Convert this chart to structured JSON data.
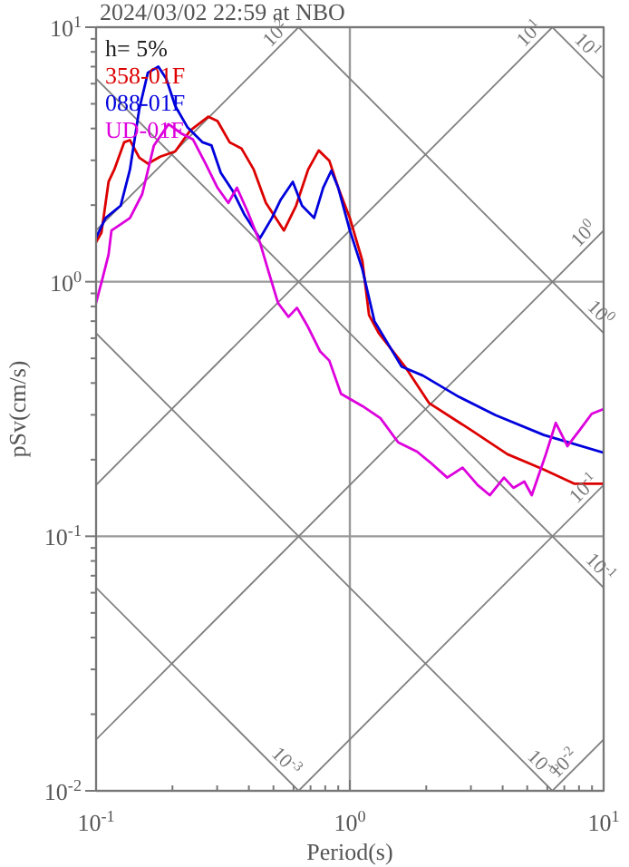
{
  "chart_data": {
    "type": "line",
    "title": "2024/03/02 22:59 at NBO",
    "xlabel": "Period(s)",
    "ylabel": "pSv(cm/s)",
    "log": "xy",
    "grid": true,
    "legend": "top left",
    "marker": "none",
    "line_style": "solid",
    "xlim": [
      0.1,
      10
    ],
    "ylim": [
      0.01,
      10
    ],
    "xticks": [
      {
        "value": 0.1,
        "label": "10$^{-1}$"
      },
      {
        "value": 0.2,
        "label": null
      },
      {
        "value": 0.3,
        "label": null
      },
      {
        "value": 0.4,
        "label": null
      },
      {
        "value": 0.5,
        "label": null
      },
      {
        "value": 0.6,
        "label": null
      },
      {
        "value": 0.7,
        "label": null
      },
      {
        "value": 0.8,
        "label": null
      },
      {
        "value": 0.9,
        "label": null
      },
      {
        "value": 1,
        "label": "10$^{0}$"
      },
      {
        "value": 2,
        "label": null
      },
      {
        "value": 3,
        "label": null
      },
      {
        "value": 4,
        "label": null
      },
      {
        "value": 5,
        "label": null
      },
      {
        "value": 6,
        "label": null
      },
      {
        "value": 7,
        "label": null
      },
      {
        "value": 8,
        "label": null
      },
      {
        "value": 9,
        "label": null
      },
      {
        "value": 10,
        "label": "10$^{1}$"
      }
    ],
    "yticks": [
      {
        "value": 0.01,
        "label": "10$^{-2}$"
      },
      {
        "value": 0.02,
        "label": null
      },
      {
        "value": 0.03,
        "label": null
      },
      {
        "value": 0.04,
        "label": null
      },
      {
        "value": 0.05,
        "label": null
      },
      {
        "value": 0.06,
        "label": null
      },
      {
        "value": 0.07,
        "label": null
      },
      {
        "value": 0.08,
        "label": null
      },
      {
        "value": 0.09,
        "label": null
      },
      {
        "value": 0.1,
        "label": "10$^{-1}$"
      },
      {
        "value": 0.2,
        "label": null
      },
      {
        "value": 0.3,
        "label": null
      },
      {
        "value": 0.4,
        "label": null
      },
      {
        "value": 0.5,
        "label": null
      },
      {
        "value": 0.6,
        "label": null
      },
      {
        "value": 0.7,
        "label": null
      },
      {
        "value": 0.8,
        "label": null
      },
      {
        "value": 0.9,
        "label": null
      },
      {
        "value": 1,
        "label": "10$^{0}$"
      },
      {
        "value": 2,
        "label": null
      },
      {
        "value": 3,
        "label": null
      },
      {
        "value": 4,
        "label": null
      },
      {
        "value": 5,
        "label": null
      },
      {
        "value": 6,
        "label": null
      },
      {
        "value": 7,
        "label": null
      },
      {
        "value": 8,
        "label": null
      },
      {
        "value": 9,
        "label": null
      },
      {
        "value": 10,
        "label": "10$^{1}$"
      }
    ],
    "series": [
      {
        "color": "#808080",
        "x": [
          0.1,
          0.628
        ],
        "values": [
          1.59,
          10
        ]
      },
      {
        "color": "#808080",
        "x": [
          0.1,
          6.28
        ],
        "values": [
          0.159,
          10
        ]
      },
      {
        "color": "#808080",
        "x": [
          0.1,
          10
        ],
        "values": [
          0.0159,
          1.59
        ]
      },
      {
        "color": "#808080",
        "x": [
          0.628,
          10
        ],
        "values": [
          0.01,
          0.159
        ]
      },
      {
        "color": "#808080",
        "x": [
          6.28,
          10
        ],
        "values": [
          0.01,
          0.0159
        ]
      },
      {
        "color": "#808080",
        "x": [
          6.28,
          10
        ],
        "values": [
          10,
          6.28
        ]
      },
      {
        "color": "#808080",
        "x": [
          0.628,
          10
        ],
        "values": [
          10,
          0.628
        ]
      },
      {
        "color": "#808080",
        "x": [
          0.1,
          10
        ],
        "values": [
          6.28,
          0.0628
        ]
      },
      {
        "color": "#808080",
        "x": [
          0.1,
          6.28
        ],
        "values": [
          0.628,
          0.01
        ]
      },
      {
        "color": "#808080",
        "x": [
          0.1,
          0.628
        ],
        "values": [
          0.0628,
          0.01
        ]
      },
      {
        "name": "358-01F",
        "color": "#dd0000",
        "x": [
          0.1,
          0.105,
          0.112,
          0.118,
          0.129,
          0.136,
          0.148,
          0.16,
          0.179,
          0.205,
          0.235,
          0.277,
          0.301,
          0.336,
          0.374,
          0.418,
          0.467,
          0.55,
          0.614,
          0.685,
          0.754,
          0.83,
          0.9,
          1.0,
          1.12,
          1.19,
          1.3,
          1.65,
          2.05,
          3.01,
          4.18,
          5.81,
          7.65,
          10
        ],
        "values": [
          1.43,
          1.56,
          2.47,
          2.76,
          3.53,
          3.6,
          3.07,
          2.91,
          3.1,
          3.25,
          3.93,
          4.45,
          4.28,
          3.53,
          3.34,
          2.76,
          2.04,
          1.59,
          1.99,
          2.76,
          3.28,
          2.99,
          2.34,
          1.78,
          1.21,
          0.74,
          0.628,
          0.464,
          0.334,
          0.261,
          0.21,
          0.183,
          0.161,
          0.161
        ]
      },
      {
        "name": "088-01F",
        "color": "#0000dd",
        "x": [
          0.1,
          0.109,
          0.125,
          0.136,
          0.148,
          0.16,
          0.176,
          0.189,
          0.205,
          0.229,
          0.263,
          0.285,
          0.31,
          0.345,
          0.385,
          0.442,
          0.493,
          0.534,
          0.596,
          0.648,
          0.723,
          0.785,
          0.845,
          0.9,
          1.0,
          1.12,
          1.25,
          1.6,
          1.94,
          2.69,
          3.75,
          5.81,
          10
        ],
        "values": [
          1.49,
          1.78,
          1.99,
          2.76,
          4.77,
          6.63,
          7.0,
          6.28,
          4.91,
          4.05,
          3.53,
          3.43,
          2.68,
          2.28,
          1.83,
          1.48,
          1.78,
          2.1,
          2.47,
          1.99,
          1.78,
          2.34,
          2.73,
          2.34,
          1.59,
          1.12,
          0.7,
          0.464,
          0.428,
          0.353,
          0.299,
          0.25,
          0.213
        ]
      },
      {
        "name": "UD-01F",
        "color": "#dd00dd",
        "x": [
          0.1,
          0.106,
          0.112,
          0.115,
          0.125,
          0.136,
          0.152,
          0.169,
          0.193,
          0.216,
          0.241,
          0.27,
          0.301,
          0.332,
          0.359,
          0.396,
          0.442,
          0.479,
          0.521,
          0.573,
          0.619,
          0.685,
          0.764,
          0.83,
          0.923,
          1.12,
          1.32,
          1.55,
          1.84,
          2.1,
          2.42,
          2.78,
          3.19,
          3.56,
          4.05,
          4.41,
          4.87,
          5.21,
          5.92,
          6.48,
          7.2,
          8.04,
          8.98,
          10
        ],
        "values": [
          0.826,
          1.03,
          1.28,
          1.59,
          1.68,
          1.78,
          2.21,
          3.43,
          4.16,
          3.83,
          3.62,
          2.91,
          2.34,
          2.04,
          2.34,
          1.88,
          1.43,
          1.09,
          0.826,
          0.728,
          0.79,
          0.663,
          0.532,
          0.49,
          0.363,
          0.325,
          0.291,
          0.234,
          0.215,
          0.193,
          0.17,
          0.186,
          0.159,
          0.145,
          0.17,
          0.155,
          0.164,
          0.145,
          0.21,
          0.279,
          0.226,
          0.261,
          0.303,
          0.316
        ]
      }
    ],
    "annotations": [
      "h= 5%",
      {
        "text": "10$^{2}$",
        "x": 0.55,
        "y": 8.76
      },
      {
        "text": "10$^{1}$",
        "x": 5.5,
        "y": 8.76
      },
      {
        "text": "10$^{0}$",
        "x": 9,
        "y": 1.43
      },
      {
        "text": "10$^{-1}$",
        "x": 9,
        "y": 0.143
      },
      {
        "text": "10$^{-2}$",
        "x": 7.5,
        "y": 0.0119
      },
      {
        "text": "10$^{1}$",
        "x": 8,
        "y": 7.85
      },
      {
        "text": "10$^{0}$",
        "x": 9,
        "y": 0.7
      },
      {
        "text": "10$^{-1}$",
        "x": 9,
        "y": 0.07
      },
      {
        "text": "10$^{-3}$",
        "x": 0.52,
        "y": 0.0121
      },
      {
        "text": "10$^{-3}$",
        "x": 5.3,
        "y": 0.0118
      }
    ]
  }
}
